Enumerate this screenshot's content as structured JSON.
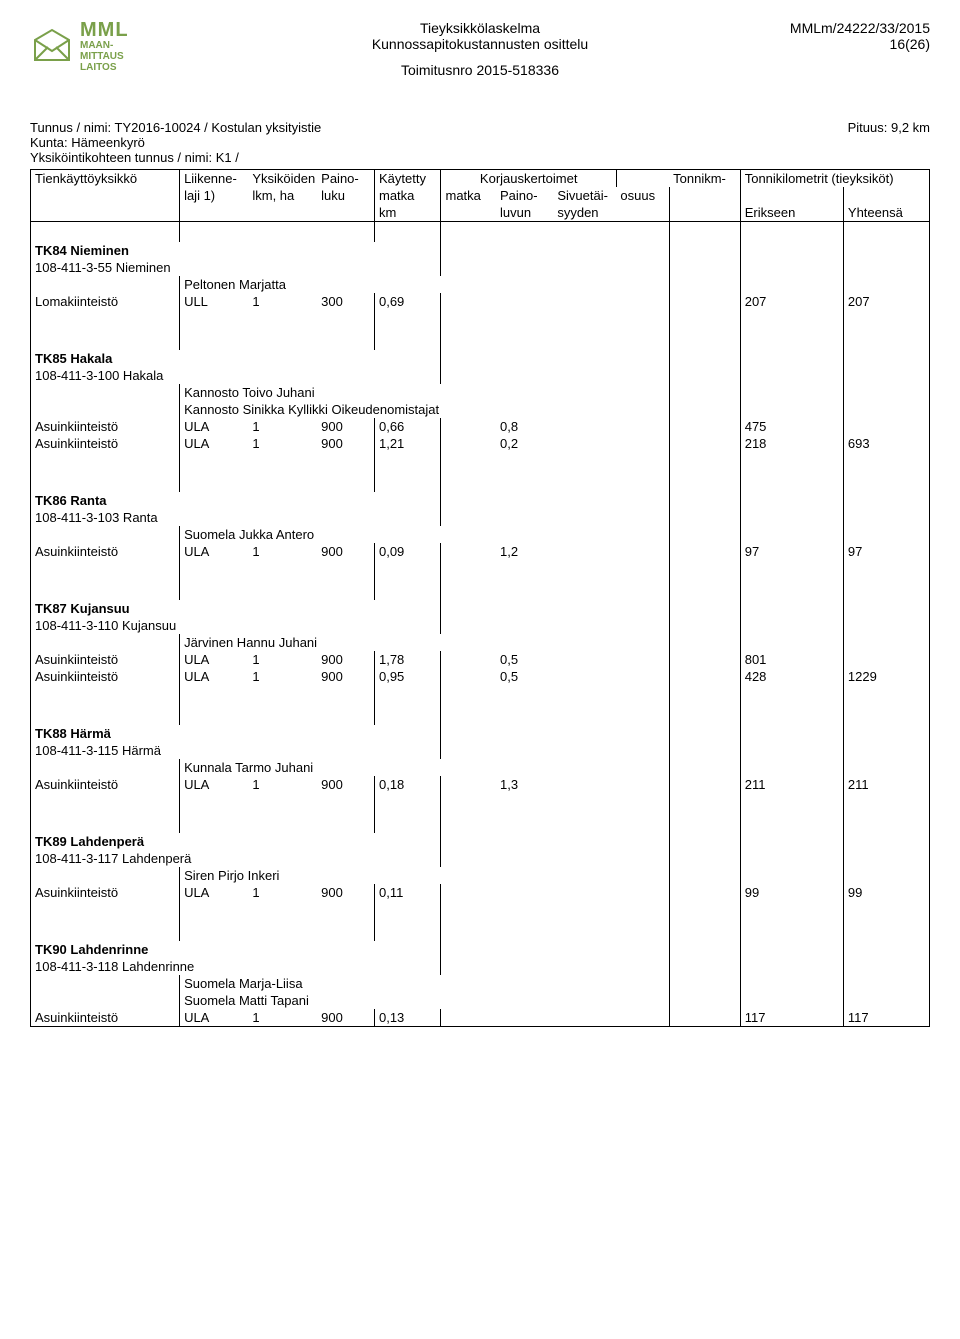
{
  "header": {
    "title1": "Tieyksikkölaskelma",
    "title2": "Kunnossapitokustannusten osittelu",
    "title3": "Toimitusnro 2015-518336",
    "ref": "MMLm/24222/33/2015",
    "page": "16(26)"
  },
  "logo": {
    "abbrev": "MML",
    "sublines": [
      "MAAN-",
      "MITTAUS",
      "LAITOS"
    ]
  },
  "intro": {
    "tunnus": "Tunnus / nimi:  TY2016-10024 / Kostulan yksityistie",
    "kunta": "Kunta:  Hämeenkyrö",
    "yksikko": "Yksiköintikohteen tunnus / nimi:  K1 /",
    "pituus": "Pituus: 9,2 km"
  },
  "thead": {
    "r1c1": "Tienkäyttöyksikkö",
    "r1c2": "Liikenne-",
    "r1c3": "Yksiköiden",
    "r1c4": "Paino-",
    "r1c5": "Käytetty",
    "r1c6": "Korjauskertoimet",
    "r1c10": "Tonnikm-",
    "r1c11": "Tonnikilometrit (tieyksiköt)",
    "r2c2": "laji 1)",
    "r2c3": "lkm, ha",
    "r2c4": "luku",
    "r2c5": "matka",
    "r2c6": "matka",
    "r2c7": "Paino-",
    "r2c8": "Sivuetäi-",
    "r2c9": "osuus",
    "r3c5": "km",
    "r3c7": "luvun",
    "r3c8": "syyden",
    "r3c11": "Erikseen",
    "r3c12": "Yhteensä"
  },
  "sections": [
    {
      "tk": "TK84 Nieminen",
      "kiint": "108-411-3-55 Nieminen",
      "owners": [
        "Peltonen Marjatta"
      ],
      "rows": [
        {
          "label": "Lomakiinteistö",
          "laji": "ULL",
          "lkm": "1",
          "paino": "300",
          "matka": "0,69",
          "m2": "",
          "pl": "",
          "siv": "",
          "os": "",
          "tk": "",
          "erik": "207",
          "yht": "207"
        }
      ]
    },
    {
      "tk": "TK85 Hakala",
      "kiint": "108-411-3-100 Hakala",
      "owners": [
        "Kannosto Toivo Juhani",
        "Kannosto Sinikka Kyllikki Oikeudenomistajat"
      ],
      "rows": [
        {
          "label": "Asuinkiinteistö",
          "laji": "ULA",
          "lkm": "1",
          "paino": "900",
          "matka": "0,66",
          "m2": "",
          "pl": "0,8",
          "siv": "",
          "os": "",
          "tk": "",
          "erik": "475",
          "yht": ""
        },
        {
          "label": "Asuinkiinteistö",
          "laji": "ULA",
          "lkm": "1",
          "paino": "900",
          "matka": "1,21",
          "m2": "",
          "pl": "0,2",
          "siv": "",
          "os": "",
          "tk": "",
          "erik": "218",
          "yht": "693"
        }
      ]
    },
    {
      "tk": "TK86 Ranta",
      "kiint": "108-411-3-103 Ranta",
      "owners": [
        "Suomela Jukka Antero"
      ],
      "rows": [
        {
          "label": "Asuinkiinteistö",
          "laji": "ULA",
          "lkm": "1",
          "paino": "900",
          "matka": "0,09",
          "m2": "",
          "pl": "1,2",
          "siv": "",
          "os": "",
          "tk": "",
          "erik": "97",
          "yht": "97"
        }
      ]
    },
    {
      "tk": "TK87 Kujansuu",
      "kiint": "108-411-3-110 Kujansuu",
      "owners": [
        "Järvinen Hannu Juhani"
      ],
      "rows": [
        {
          "label": "Asuinkiinteistö",
          "laji": "ULA",
          "lkm": "1",
          "paino": "900",
          "matka": "1,78",
          "m2": "",
          "pl": "0,5",
          "siv": "",
          "os": "",
          "tk": "",
          "erik": "801",
          "yht": ""
        },
        {
          "label": "Asuinkiinteistö",
          "laji": "ULA",
          "lkm": "1",
          "paino": "900",
          "matka": "0,95",
          "m2": "",
          "pl": "0,5",
          "siv": "",
          "os": "",
          "tk": "",
          "erik": "428",
          "yht": "1229"
        }
      ]
    },
    {
      "tk": "TK88 Härmä",
      "kiint": "108-411-3-115 Härmä",
      "owners": [
        "Kunnala Tarmo Juhani"
      ],
      "rows": [
        {
          "label": "Asuinkiinteistö",
          "laji": "ULA",
          "lkm": "1",
          "paino": "900",
          "matka": "0,18",
          "m2": "",
          "pl": "1,3",
          "siv": "",
          "os": "",
          "tk": "",
          "erik": "211",
          "yht": "211"
        }
      ]
    },
    {
      "tk": "TK89 Lahdenperä",
      "kiint": "108-411-3-117 Lahdenperä",
      "owners": [
        "Siren Pirjo Inkeri"
      ],
      "rows": [
        {
          "label": "Asuinkiinteistö",
          "laji": "ULA",
          "lkm": "1",
          "paino": "900",
          "matka": "0,11",
          "m2": "",
          "pl": "",
          "siv": "",
          "os": "",
          "tk": "",
          "erik": "99",
          "yht": "99"
        }
      ]
    },
    {
      "tk": "TK90 Lahdenrinne",
      "kiint": "108-411-3-118 Lahdenrinne",
      "owners": [
        "Suomela Marja-Liisa",
        "Suomela Matti Tapani"
      ],
      "rows": [
        {
          "label": "Asuinkiinteistö",
          "laji": "ULA",
          "lkm": "1",
          "paino": "900",
          "matka": "0,13",
          "m2": "",
          "pl": "",
          "siv": "",
          "os": "",
          "tk": "",
          "erik": "117",
          "yht": "117"
        }
      ]
    }
  ]
}
